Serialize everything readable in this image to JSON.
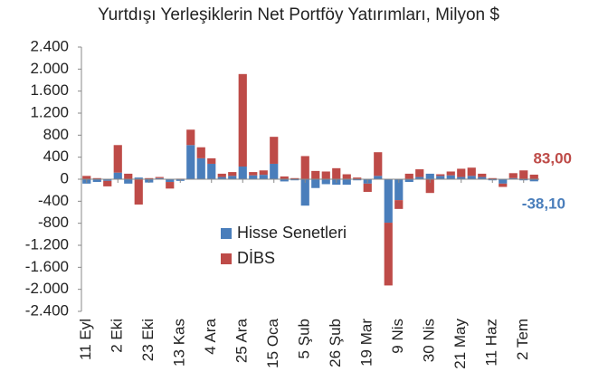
{
  "chart_data": {
    "type": "stacked_bar",
    "title": "Yurtdışı Yerleşiklerin Net Portföy Yatırımları, Milyon $",
    "categories": [
      "11 Eyl",
      null,
      null,
      "2 Eki",
      null,
      null,
      "23 Eki",
      null,
      null,
      "13 Kas",
      null,
      null,
      "4 Ara",
      null,
      null,
      "25 Ara",
      null,
      null,
      "15 Oca",
      null,
      null,
      "5 Şub",
      null,
      null,
      "26 Şub",
      null,
      null,
      "19 Mar",
      null,
      null,
      "9 Nis",
      null,
      null,
      "30 Nis",
      null,
      null,
      "21 May",
      null,
      null,
      "11 Haz",
      null,
      null,
      "2 Tem",
      null
    ],
    "series": [
      {
        "name": "Hisse Senetleri",
        "color": "#4a7ebb",
        "values": [
          -80,
          -50,
          -30,
          120,
          -80,
          30,
          -60,
          20,
          -50,
          -30,
          620,
          380,
          280,
          40,
          60,
          230,
          70,
          80,
          280,
          -40,
          -20,
          -480,
          -160,
          -90,
          -100,
          -100,
          -20,
          -80,
          60,
          -790,
          -380,
          -50,
          40,
          100,
          60,
          70,
          40,
          60,
          40,
          -20,
          -80,
          20,
          -20,
          -38.1
        ],
        "value_labels": [
          null,
          null,
          null,
          null,
          null,
          null,
          null,
          null,
          null,
          null,
          null,
          null,
          null,
          null,
          null,
          null,
          null,
          null,
          null,
          null,
          null,
          null,
          null,
          null,
          null,
          null,
          null,
          null,
          null,
          null,
          null,
          null,
          null,
          null,
          null,
          null,
          null,
          null,
          null,
          null,
          null,
          null,
          null,
          "-38,10"
        ]
      },
      {
        "name": "DİBS",
        "color": "#be4b48",
        "values": [
          60,
          20,
          -100,
          500,
          100,
          -460,
          20,
          20,
          -120,
          10,
          280,
          200,
          100,
          60,
          70,
          1680,
          60,
          80,
          490,
          50,
          20,
          420,
          150,
          140,
          200,
          90,
          30,
          -150,
          430,
          -1140,
          -160,
          100,
          140,
          -250,
          30,
          70,
          150,
          150,
          60,
          20,
          -60,
          90,
          160,
          83
        ],
        "value_labels": [
          null,
          null,
          null,
          null,
          null,
          null,
          null,
          null,
          null,
          null,
          null,
          null,
          null,
          null,
          null,
          null,
          null,
          null,
          null,
          null,
          null,
          null,
          null,
          null,
          null,
          null,
          null,
          null,
          null,
          null,
          null,
          null,
          null,
          null,
          null,
          null,
          null,
          null,
          null,
          null,
          null,
          null,
          null,
          "83,00"
        ]
      }
    ],
    "ylim": [
      -2400,
      2400
    ],
    "yticks": [
      {
        "value": -2400,
        "label": "-2.400"
      },
      {
        "value": -2000,
        "label": "-2.000"
      },
      {
        "value": -1600,
        "label": "-1.600"
      },
      {
        "value": -1200,
        "label": "-1.200"
      },
      -800,
      -400,
      0,
      400,
      800,
      {
        "value": 1200,
        "label": "1.200"
      },
      {
        "value": 1600,
        "label": "1.600"
      },
      {
        "value": 2000,
        "label": "2.000"
      },
      {
        "value": 2400,
        "label": "2.400"
      }
    ],
    "grid": false,
    "legend": "center"
  }
}
